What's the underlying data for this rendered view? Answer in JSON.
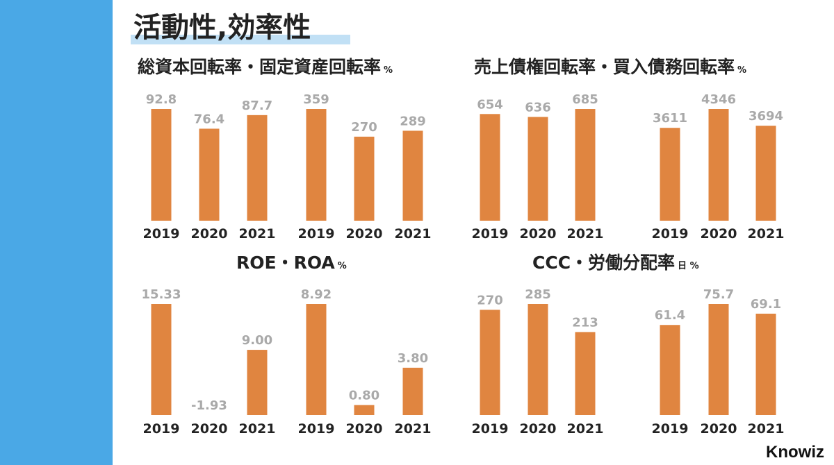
{
  "page": {
    "title": "活動性,効率性",
    "brand": "Knowiz"
  },
  "colors": {
    "sidebar": "#4aa8e6",
    "bar": "#e08540",
    "value_label": "#a9a9a9",
    "axis_label": "#222222",
    "title_underline": "#9fd0ef"
  },
  "panels": [
    {
      "title": "総資本回転率・固定資産回転率",
      "unit": "%"
    },
    {
      "title": "売上債権回転率・買入債務回転率",
      "unit": "%"
    },
    {
      "title": "ROE・ROA",
      "unit": "%"
    },
    {
      "title": "CCC・労働分配率",
      "unit": "日 %"
    }
  ],
  "chart_data": [
    {
      "type": "bar",
      "title": "",
      "categories": [
        "2019",
        "2020",
        "2021"
      ],
      "values": [
        92.8,
        76.4,
        87.7
      ],
      "labels": [
        "92.8",
        "76.4",
        "87.7"
      ]
    },
    {
      "type": "bar",
      "title": "",
      "categories": [
        "2019",
        "2020",
        "2021"
      ],
      "values": [
        359,
        270,
        289
      ],
      "labels": [
        "359",
        "270",
        "289"
      ]
    },
    {
      "type": "bar",
      "title": "",
      "categories": [
        "2019",
        "2020",
        "2021"
      ],
      "values": [
        654,
        636,
        685
      ],
      "labels": [
        "654",
        "636",
        "685"
      ]
    },
    {
      "type": "bar",
      "title": "",
      "categories": [
        "2019",
        "2020",
        "2021"
      ],
      "values": [
        3611,
        4346,
        3694
      ],
      "labels": [
        "3611",
        "4346",
        "3694"
      ]
    },
    {
      "type": "bar",
      "title": "",
      "categories": [
        "2019",
        "2020",
        "2021"
      ],
      "values": [
        15.33,
        -1.93,
        9.0
      ],
      "labels": [
        "15.33",
        "-1.93",
        "9.00"
      ]
    },
    {
      "type": "bar",
      "title": "",
      "categories": [
        "2019",
        "2020",
        "2021"
      ],
      "values": [
        8.92,
        0.8,
        3.8
      ],
      "labels": [
        "8.92",
        "0.80",
        "3.80"
      ]
    },
    {
      "type": "bar",
      "title": "",
      "categories": [
        "2019",
        "2020",
        "2021"
      ],
      "values": [
        270,
        285,
        213
      ],
      "labels": [
        "270",
        "285",
        "213"
      ]
    },
    {
      "type": "bar",
      "title": "",
      "categories": [
        "2019",
        "2020",
        "2021"
      ],
      "values": [
        61.4,
        75.7,
        69.1
      ],
      "labels": [
        "61.4",
        "75.7",
        "69.1"
      ]
    }
  ]
}
